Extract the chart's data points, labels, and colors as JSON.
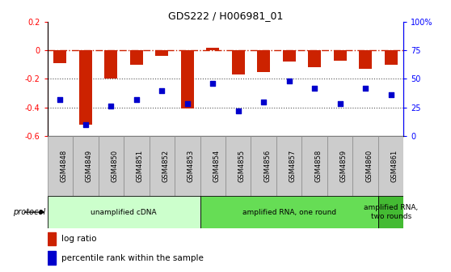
{
  "title": "GDS222 / H006981_01",
  "samples": [
    "GSM4848",
    "GSM4849",
    "GSM4850",
    "GSM4851",
    "GSM4852",
    "GSM4853",
    "GSM4854",
    "GSM4855",
    "GSM4856",
    "GSM4857",
    "GSM4858",
    "GSM4859",
    "GSM4860",
    "GSM4861"
  ],
  "log_ratio": [
    -0.09,
    -0.52,
    -0.2,
    -0.1,
    -0.04,
    -0.41,
    0.02,
    -0.17,
    -0.15,
    -0.08,
    -0.12,
    -0.07,
    -0.13,
    -0.1
  ],
  "percentile": [
    32,
    10,
    26,
    32,
    40,
    28,
    46,
    22,
    30,
    48,
    42,
    28,
    42,
    36
  ],
  "ylim_left": [
    -0.6,
    0.2
  ],
  "ylim_right": [
    0,
    100
  ],
  "yticks_left": [
    0.2,
    0.0,
    -0.2,
    -0.4,
    -0.6
  ],
  "yticks_right": [
    100,
    75,
    50,
    25,
    0
  ],
  "bar_color": "#cc2200",
  "dot_color": "#0000cc",
  "protocol_groups": [
    {
      "label": "unamplified cDNA",
      "start": 0,
      "end": 5,
      "color": "#ccffcc"
    },
    {
      "label": "amplified RNA, one round",
      "start": 6,
      "end": 12,
      "color": "#66dd55"
    },
    {
      "label": "amplified RNA,\ntwo rounds",
      "start": 13,
      "end": 13,
      "color": "#44bb33"
    }
  ],
  "legend_items": [
    {
      "label": "log ratio",
      "color": "#cc2200"
    },
    {
      "label": "percentile rank within the sample",
      "color": "#0000cc"
    }
  ],
  "hline_color": "#cc2200",
  "dotted_color": "#555555",
  "background_color": "#ffffff",
  "plot_bg": "#ffffff",
  "tick_box_color": "#cccccc",
  "bar_width": 0.5
}
